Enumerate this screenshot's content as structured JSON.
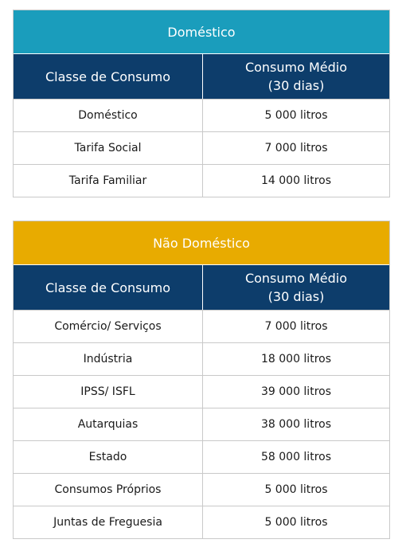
{
  "table1": {
    "title": "Doméstico",
    "header": {
      "col1": "Classe de Consumo",
      "col2_line1": "Consumo Médio",
      "col2_line2": "(30 dias)"
    },
    "rows": [
      {
        "classe": "Doméstico",
        "consumo": "5 000 litros"
      },
      {
        "classe": "Tarifa Social",
        "consumo": "7 000 litros"
      },
      {
        "classe": "Tarifa Familiar",
        "consumo": "14 000 litros"
      }
    ]
  },
  "table2": {
    "title": "Não Doméstico",
    "header": {
      "col1": "Classe de Consumo",
      "col2_line1": "Consumo Médio",
      "col2_line2": "(30 dias)"
    },
    "rows": [
      {
        "classe": "Comércio/ Serviços",
        "consumo": "7 000 litros"
      },
      {
        "classe": "Indústria",
        "consumo": "18 000 litros"
      },
      {
        "classe": "IPSS/ ISFL",
        "consumo": "39 000 litros"
      },
      {
        "classe": "Autarquias",
        "consumo": "38 000 litros"
      },
      {
        "classe": "Estado",
        "consumo": "58 000 litros"
      },
      {
        "classe": "Consumos Próprios",
        "consumo": "5 000 litros"
      },
      {
        "classe": "Juntas de Freguesia",
        "consumo": "5 000 litros"
      }
    ]
  },
  "colors": {
    "domestic_header": "#1a9dbc",
    "non_domestic_header": "#e8ab00",
    "column_header": "#0d3d6b"
  }
}
